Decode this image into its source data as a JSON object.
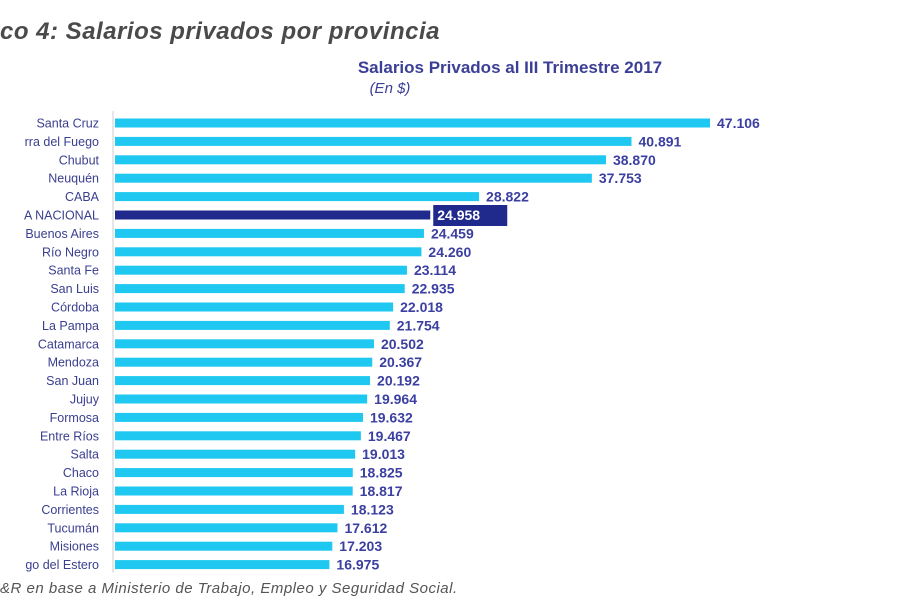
{
  "heading": "co 4: Salarios privados por provincia",
  "source": "&R en base a Ministerio de Trabajo, Empleo y Seguridad Social.",
  "colors": {
    "bar": "#1ec8f0",
    "highlight": "#1f2a8c",
    "label": "#3a3f8f",
    "value": "#3b3fa0"
  },
  "chart_data": {
    "type": "bar",
    "orientation": "horizontal",
    "title": "Salarios Privados al III Trimestre 2017",
    "subtitle": "(En $)",
    "xlabel": "",
    "ylabel": "",
    "xlim": [
      0,
      47106
    ],
    "grid": false,
    "highlight_index": 5,
    "categories": [
      "Santa Cruz",
      "rra del Fuego",
      "Chubut",
      "Neuquén",
      "CABA",
      "A NACIONAL",
      "Buenos Aires",
      "Río Negro",
      "Santa Fe",
      "San Luis",
      "Córdoba",
      "La Pampa",
      "Catamarca",
      "Mendoza",
      "San Juan",
      "Jujuy",
      "Formosa",
      "Entre Ríos",
      "Salta",
      "Chaco",
      "La Rioja",
      "Corrientes",
      "Tucumán",
      "Misiones",
      "go del Estero"
    ],
    "values": [
      47106,
      40891,
      38870,
      37753,
      28822,
      24958,
      24459,
      24260,
      23114,
      22935,
      22018,
      21754,
      20502,
      20367,
      20192,
      19964,
      19632,
      19467,
      19013,
      18825,
      18817,
      18123,
      17612,
      17203,
      16975
    ],
    "value_labels": [
      "47.106",
      "40.891",
      "38.870",
      "37.753",
      "28.822",
      "24.958",
      "24.459",
      "24.260",
      "23.114",
      "22.935",
      "22.018",
      "21.754",
      "20.502",
      "20.367",
      "20.192",
      "19.964",
      "19.632",
      "19.467",
      "19.013",
      "18.825",
      "18.817",
      "18.123",
      "17.612",
      "17.203",
      "16.975"
    ]
  }
}
